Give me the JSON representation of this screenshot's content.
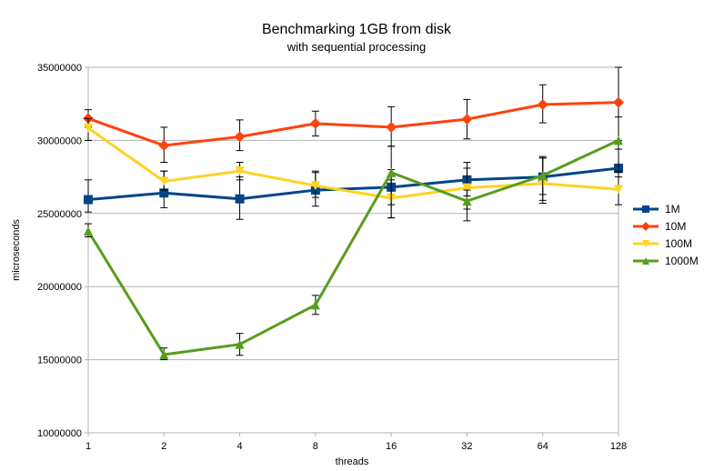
{
  "chart_data": {
    "type": "line",
    "title": "Benchmarking 1GB from disk",
    "subtitle": "with sequential processing",
    "xlabel": "threads",
    "ylabel": "microseconds",
    "categories": [
      "1",
      "2",
      "4",
      "8",
      "16",
      "32",
      "64",
      "128"
    ],
    "ylim": [
      10000000,
      35000000
    ],
    "yticks": [
      10000000,
      15000000,
      20000000,
      25000000,
      30000000,
      35000000
    ],
    "ytick_labels": [
      "10000000",
      "15000000",
      "20000000",
      "25000000",
      "30000000",
      "35000000"
    ],
    "grid": "horizontal",
    "legend_position": "right",
    "series": [
      {
        "name": "1M",
        "color": "#004586",
        "marker": "square",
        "values": [
          25950000,
          26400000,
          26000000,
          26600000,
          26800000,
          27300000,
          27500000,
          28100000
        ],
        "err_low": [
          25100000,
          25400000,
          24600000,
          25500000,
          25600000,
          26200000,
          26300000,
          27500000
        ],
        "err_high": [
          27300000,
          27900000,
          27500000,
          27900000,
          28000000,
          28500000,
          28900000,
          29400000
        ]
      },
      {
        "name": "10M",
        "color": "#ff420e",
        "marker": "diamond",
        "values": [
          31500000,
          29650000,
          30250000,
          31150000,
          30900000,
          31450000,
          32450000,
          32600000
        ],
        "err_low": [
          30900000,
          28500000,
          29300000,
          30300000,
          29600000,
          30100000,
          31200000,
          30000000
        ],
        "err_high": [
          32100000,
          30900000,
          31400000,
          32000000,
          32300000,
          32800000,
          33800000,
          35000000
        ]
      },
      {
        "name": "100M",
        "color": "#ffd320",
        "marker": "triangle-down",
        "values": [
          30850000,
          27200000,
          27900000,
          26900000,
          26050000,
          26750000,
          27050000,
          26650000
        ],
        "err_low": [
          30000000,
          26600000,
          27300000,
          26100000,
          24700000,
          25300000,
          25700000,
          25600000
        ],
        "err_high": [
          31500000,
          27900000,
          28500000,
          27800000,
          27300000,
          28100000,
          28800000,
          27800000
        ]
      },
      {
        "name": "1000M",
        "color": "#579d1c",
        "marker": "triangle-up",
        "values": [
          23800000,
          15350000,
          16050000,
          18750000,
          27800000,
          25850000,
          27600000,
          30000000
        ],
        "err_low": [
          23400000,
          15000000,
          15300000,
          18100000,
          24700000,
          24500000,
          25900000,
          27900000
        ],
        "err_high": [
          24300000,
          15800000,
          16800000,
          19400000,
          29600000,
          26600000,
          28800000,
          31600000
        ]
      }
    ]
  }
}
